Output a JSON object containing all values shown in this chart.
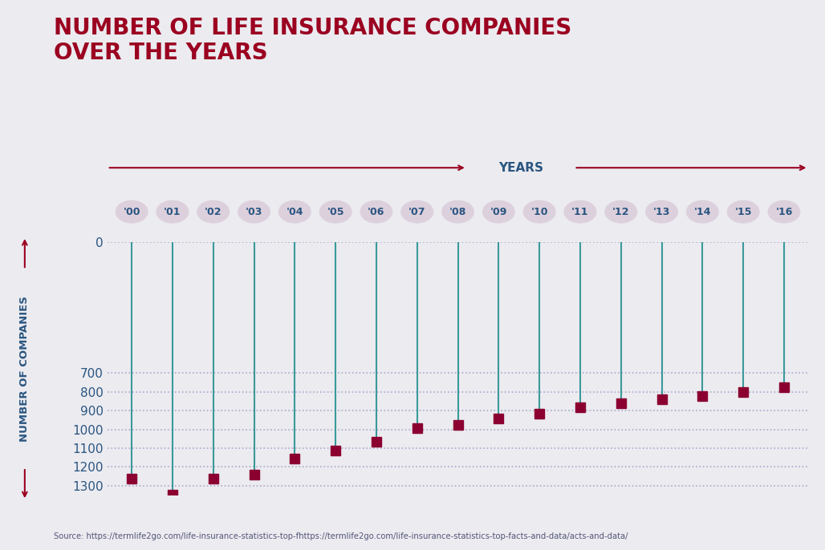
{
  "years": [
    "'00",
    "'01",
    "'02",
    "'03",
    "'04",
    "'05",
    "'06",
    "'07",
    "'08",
    "'09",
    "'10",
    "'11",
    "'12",
    "'13",
    "'14",
    "'15",
    "'16"
  ],
  "values": [
    1262,
    1348,
    1264,
    1243,
    1155,
    1115,
    1065,
    995,
    978,
    940,
    916,
    884,
    860,
    838,
    820,
    800,
    773
  ],
  "title_line1": "NUMBER OF LIFE INSURANCE COMPANIES",
  "title_line2": "OVER THE YEARS",
  "ylabel": "NUMBER OF COMPANIES",
  "xlabel": "YEARS",
  "source": "Source: https://termlife2go.com/life-insurance-statistics-top-fhttps://termlife2go.com/life-insurance-statistics-top-facts-and-data/acts-and-data/",
  "title_color": "#9b0020",
  "ylabel_color": "#2a5580",
  "xlabel_color": "#2a5580",
  "line_color": "#3a9a9a",
  "marker_color": "#8b0030",
  "bubble_bg": "#ddd0dd",
  "bubble_text_color": "#2a5580",
  "background_color": "#ebebf0",
  "grid_color": "#aaaacc",
  "arrow_color": "#9b0020",
  "ylim_min": 0,
  "ylim_max": 1350,
  "yticks": [
    0,
    700,
    800,
    900,
    1000,
    1100,
    1200,
    1300
  ]
}
